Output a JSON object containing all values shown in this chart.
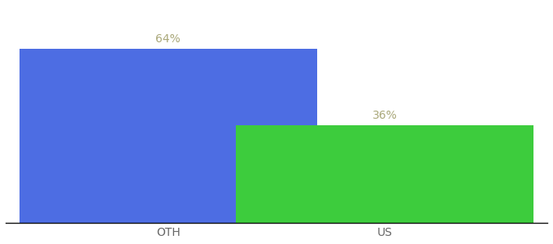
{
  "categories": [
    "OTH",
    "US"
  ],
  "values": [
    64,
    36
  ],
  "bar_colors": [
    "#4d6de3",
    "#3dcc3d"
  ],
  "label_color": "#aaa87a",
  "label_fontsize": 10,
  "tick_fontsize": 10,
  "tick_color": "#666666",
  "background_color": "#ffffff",
  "ylim": [
    0,
    80
  ],
  "bar_width": 0.55,
  "x_positions": [
    0.3,
    0.7
  ],
  "xlim": [
    0.0,
    1.0
  ]
}
